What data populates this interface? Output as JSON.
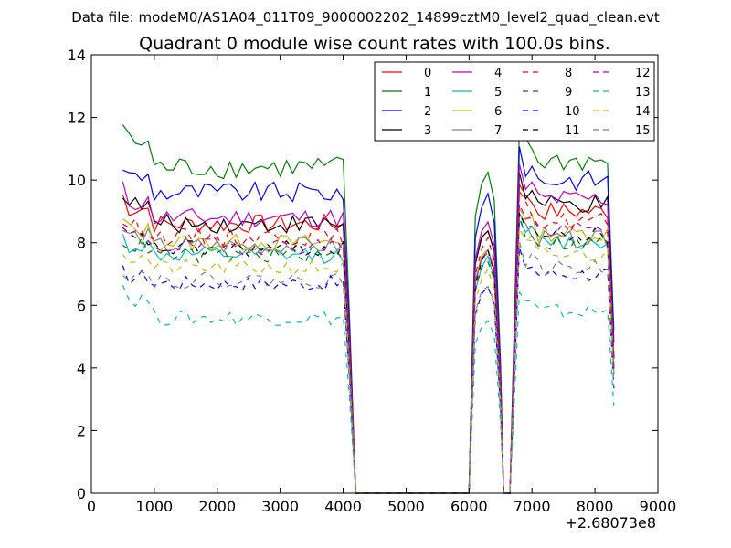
{
  "chart_data": {
    "type": "line",
    "suptitle": "Data file: modeM0/AS1A04_011T09_9000002202_14899cztM0_level2_quad_clean.evt",
    "title": "Quadrant 0 module wise count rates with 100.0s bins.",
    "xlabel": "",
    "ylabel": "",
    "x_offset_label": "+2.68073e8",
    "xlim": [
      0,
      9000
    ],
    "ylim": [
      0,
      14
    ],
    "xticks": [
      0,
      1000,
      2000,
      3000,
      4000,
      5000,
      6000,
      7000,
      8000,
      9000
    ],
    "yticks": [
      0,
      2,
      4,
      6,
      8,
      10,
      12,
      14
    ],
    "legend": {
      "placement": "top-right",
      "columns": 4
    },
    "series": [
      {
        "name": "0",
        "color": "#ff0000",
        "dash": "solid",
        "level": 8.6,
        "drop": 0.5,
        "post": 9.0
      },
      {
        "name": "1",
        "color": "#008000",
        "dash": "solid",
        "level": 10.4,
        "drop": 0.8,
        "post": 10.6
      },
      {
        "name": "2",
        "color": "#0000ff",
        "dash": "solid",
        "level": 9.6,
        "drop": 0.5,
        "post": 10.0
      },
      {
        "name": "3",
        "color": "#000000",
        "dash": "solid",
        "level": 8.6,
        "drop": 0.6,
        "post": 9.2
      },
      {
        "name": "4",
        "color": "#bf00bf",
        "dash": "solid",
        "level": 8.8,
        "drop": 0.5,
        "post": 9.4
      },
      {
        "name": "5",
        "color": "#00bfbf",
        "dash": "solid",
        "level": 7.6,
        "drop": 0.3,
        "post": 8.0
      },
      {
        "name": "6",
        "color": "#bfbf00",
        "dash": "solid",
        "level": 8.0,
        "drop": 0.4,
        "post": 8.3
      },
      {
        "name": "7",
        "color": "#808080",
        "dash": "solid",
        "level": 7.9,
        "drop": 0.3,
        "post": 8.1
      },
      {
        "name": "8",
        "color": "#ff0000",
        "dash": "dashed",
        "level": 8.2,
        "drop": 0.3,
        "post": 8.7
      },
      {
        "name": "9",
        "color": "#008000",
        "dash": "dashed",
        "level": 7.6,
        "drop": 0.3,
        "post": 8.0
      },
      {
        "name": "10",
        "color": "#0000ff",
        "dash": "dashed",
        "level": 6.7,
        "drop": 0.2,
        "post": 7.0
      },
      {
        "name": "11",
        "color": "#000000",
        "dash": "dashed",
        "level": 7.8,
        "drop": 0.3,
        "post": 8.2
      },
      {
        "name": "12",
        "color": "#bf00bf",
        "dash": "dashed",
        "level": 7.9,
        "drop": 0.3,
        "post": 8.4
      },
      {
        "name": "13",
        "color": "#00bfbf",
        "dash": "dashed",
        "level": 5.6,
        "drop": 0.6,
        "post": 5.8
      },
      {
        "name": "14",
        "color": "#bfbf00",
        "dash": "dashed",
        "level": 7.2,
        "drop": 0.3,
        "post": 7.6
      },
      {
        "name": "15",
        "color": "#808080",
        "dash": "dashed",
        "level": 6.8,
        "drop": 0.2,
        "post": 7.2
      }
    ],
    "time_segments": {
      "seg1_start": 500,
      "seg1_end": 4000,
      "gap_end": 6000,
      "burst1_peak": 6300,
      "burst1_end": 6550,
      "burst2_start": 6650,
      "burst2_peak": 6800,
      "seg3_end": 8300,
      "step": 100
    },
    "colors": {
      "background": "#ffffff",
      "axes": "#000000",
      "legend_border": "#000000"
    }
  }
}
